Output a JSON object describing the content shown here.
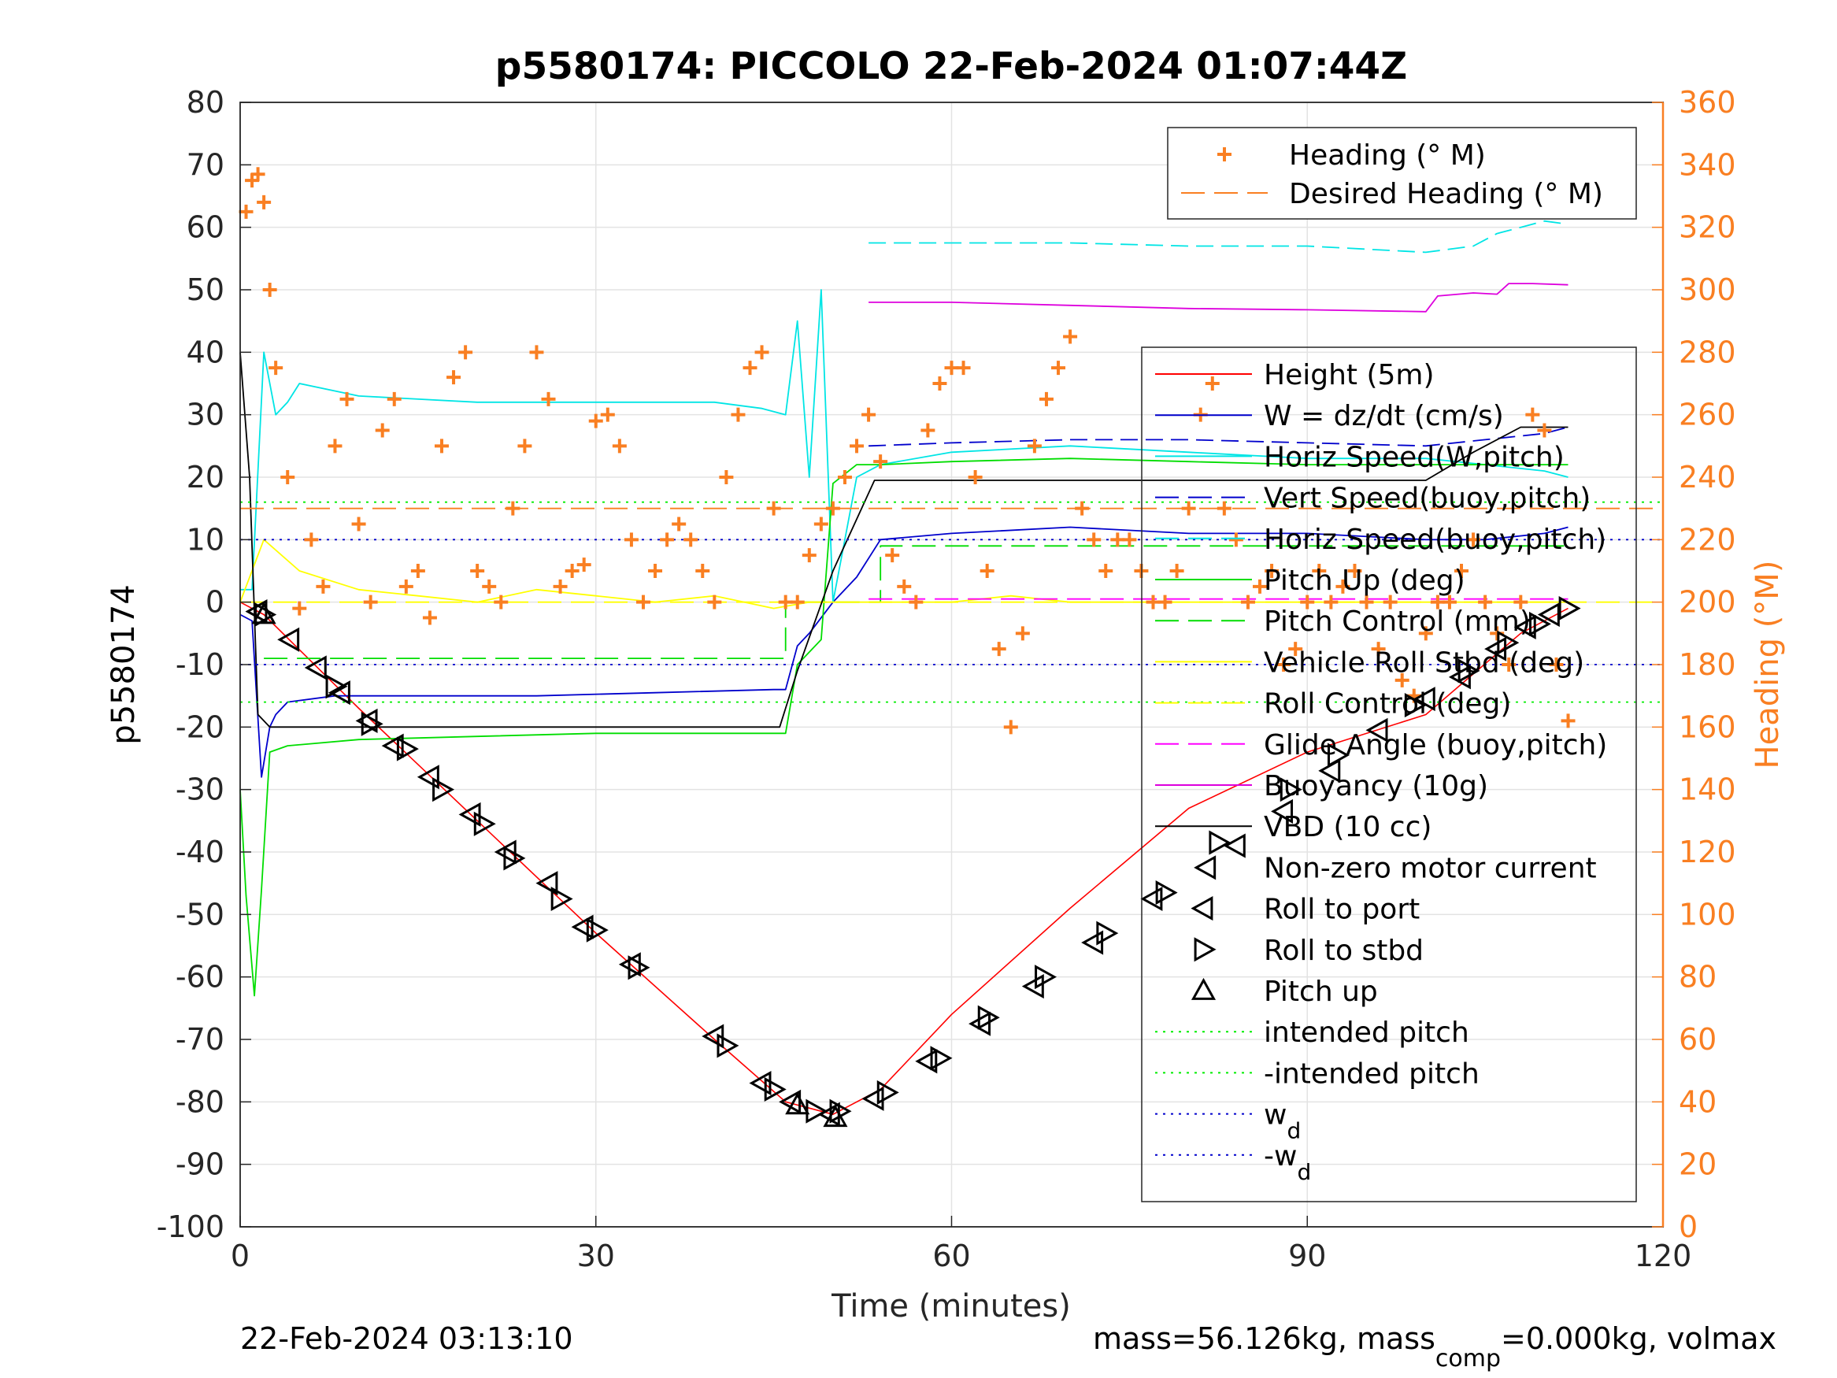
{
  "title": "p5580174: PICCOLO 22-Feb-2024 01:07:44Z",
  "xlabel": "Time (minutes)",
  "ylabel_left": "p5580174",
  "ylabel_right": "Heading (°M)",
  "footer_left": "22-Feb-2024 03:13:10",
  "footer_right_prefix": "mass=56.126kg, mass",
  "footer_right_sub": "comp",
  "footer_right_suffix": "=0.000kg, volmax",
  "colors": {
    "heading": "#f97f22",
    "height": "#ff0000",
    "w": "#0000cc",
    "horiz_speed": "#00e5e5",
    "pitch_up": "#00dd00",
    "roll": "#ffff00",
    "glide": "#ff00ff",
    "buoyancy": "#dd00dd",
    "vbd": "#000000",
    "intended_pitch": "#00ee00",
    "wd": "#0000cc"
  },
  "legend_top": {
    "items": [
      {
        "label": "Heading (° M)",
        "style": "plus",
        "color": "#f97f22"
      },
      {
        "label": "Desired Heading (° M)",
        "style": "dash",
        "color": "#f97f22"
      }
    ]
  },
  "legend_main": {
    "items": [
      {
        "label": "Height (5m)",
        "style": "solid",
        "color": "#ff0000"
      },
      {
        "label": "W = dz/dt (cm/s)",
        "style": "solid",
        "color": "#0000cc"
      },
      {
        "label": "Horiz Speed(W,pitch)",
        "style": "solid",
        "color": "#00e5e5"
      },
      {
        "label": "Vert Speed(buoy,pitch)",
        "style": "dash",
        "color": "#0000cc"
      },
      {
        "label": "Horiz Speed(buoy,pitch)",
        "style": "dash",
        "color": "#00e5e5"
      },
      {
        "label": "Pitch Up (deg)",
        "style": "solid",
        "color": "#00dd00"
      },
      {
        "label": "Pitch Control (mm)",
        "style": "dash",
        "color": "#00dd00"
      },
      {
        "label": "Vehicle Roll Stbd (deg)",
        "style": "solid",
        "color": "#ffff00"
      },
      {
        "label": "Roll Control (deg)",
        "style": "dash",
        "color": "#ffff00"
      },
      {
        "label": "Glide Angle (buoy,pitch)",
        "style": "dash",
        "color": "#ff00ff"
      },
      {
        "label": "Buoyancy (10g)",
        "style": "solid",
        "color": "#dd00dd"
      },
      {
        "label": "VBD (10 cc)",
        "style": "solid",
        "color": "#000000"
      },
      {
        "label": "Non-zero motor current",
        "style": "none",
        "color": "#000000"
      },
      {
        "label": "Roll to port",
        "style": "tri-left",
        "color": "#000000"
      },
      {
        "label": "Roll to stbd",
        "style": "tri-right",
        "color": "#000000"
      },
      {
        "label": "Pitch up",
        "style": "tri-up",
        "color": "#000000"
      },
      {
        "label": "intended pitch",
        "style": "dot",
        "color": "#00ee00"
      },
      {
        "label": "-intended pitch",
        "style": "dot",
        "color": "#00ee00"
      },
      {
        "label": "w",
        "sub": "d",
        "style": "dot",
        "color": "#0000cc"
      },
      {
        "label": "-w",
        "sub": "d",
        "style": "dot",
        "color": "#0000cc"
      }
    ]
  },
  "chart_data": {
    "type": "line",
    "title": "p5580174: PICCOLO 22-Feb-2024 01:07:44Z",
    "xlabel": "Time (minutes)",
    "ylabel": "p5580174",
    "y2label": "Heading (°M)",
    "xlim": [
      0,
      120
    ],
    "ylim": [
      -100,
      80
    ],
    "y2lim": [
      0,
      360
    ],
    "xticks": [
      0,
      30,
      60,
      90,
      120
    ],
    "yticks": [
      80,
      70,
      60,
      50,
      40,
      30,
      20,
      10,
      0,
      -10,
      -20,
      -30,
      -40,
      -50,
      -60,
      -70,
      -80,
      -90,
      -100
    ],
    "y2ticks": [
      360,
      340,
      320,
      300,
      280,
      260,
      240,
      220,
      200,
      180,
      160,
      140,
      120,
      100,
      80,
      60,
      40,
      20,
      0
    ],
    "grid": true,
    "legend_placement": [
      "top-right",
      "right"
    ],
    "series": [
      {
        "name": "Height (5m)",
        "axis": "left",
        "x": [
          0,
          2,
          10,
          20,
          30,
          40,
          46,
          50,
          54,
          60,
          70,
          80,
          90,
          100,
          108,
          112
        ],
        "y": [
          0,
          -2,
          -17,
          -35,
          -53,
          -70,
          -80,
          -82,
          -78,
          -66,
          -49,
          -33,
          -24,
          -18,
          -5,
          -1
        ]
      },
      {
        "name": "W = dz/dt (cm/s)",
        "axis": "left",
        "x": [
          0,
          1,
          1.8,
          2.5,
          3,
          4,
          8,
          15,
          25,
          35,
          45,
          46,
          47,
          48,
          50,
          52,
          54,
          60,
          70,
          80,
          90,
          100,
          105,
          110,
          112
        ],
        "y": [
          -2,
          -3,
          -28,
          -20,
          -18,
          -16,
          -15,
          -15,
          -15,
          -14.5,
          -14,
          -14,
          -7,
          -5,
          0,
          4,
          10,
          11,
          12,
          11,
          11,
          10,
          10,
          11,
          12
        ]
      },
      {
        "name": "Horiz Speed(W,pitch)",
        "axis": "left",
        "x": [
          0,
          1,
          2,
          3,
          4,
          5,
          10,
          20,
          30,
          40,
          44,
          46,
          47,
          48,
          49,
          50,
          52,
          54,
          60,
          70,
          80,
          90,
          100,
          105,
          110,
          112
        ],
        "y": [
          2,
          2,
          40,
          30,
          32,
          35,
          33,
          32,
          32,
          32,
          31,
          30,
          45,
          20,
          50,
          0,
          20,
          22,
          24,
          25,
          24,
          23,
          23,
          22,
          21,
          20
        ]
      },
      {
        "name": "Vert Speed(buoy,pitch)",
        "axis": "left",
        "x": [
          53,
          60,
          70,
          80,
          90,
          100,
          105,
          110,
          112
        ],
        "y": [
          25,
          25.5,
          26,
          26,
          25.5,
          25,
          26,
          27,
          28
        ]
      },
      {
        "name": "Horiz Speed(buoy,pitch)",
        "axis": "left",
        "x": [
          53,
          60,
          70,
          80,
          90,
          100,
          104,
          106,
          108,
          110,
          112
        ],
        "y": [
          57.5,
          57.5,
          57.5,
          57,
          57,
          56,
          57,
          59,
          60,
          61,
          60.5
        ]
      },
      {
        "name": "Pitch Up (deg)",
        "axis": "left",
        "x": [
          0,
          0.5,
          1.2,
          1.8,
          2.5,
          4,
          10,
          20,
          30,
          40,
          46,
          47,
          48,
          49,
          50,
          52,
          54,
          60,
          70,
          80,
          90,
          100,
          110,
          112
        ],
        "y": [
          -30,
          -47,
          -63,
          -46,
          -24,
          -23,
          -22,
          -21.5,
          -21,
          -21,
          -21,
          -10,
          -8,
          -6,
          19,
          22,
          22,
          22.5,
          23,
          22.5,
          22,
          22,
          22,
          22
        ]
      },
      {
        "name": "Pitch Control (mm)",
        "axis": "left",
        "x": [
          2,
          46,
          46,
          54,
          54,
          112
        ],
        "y": [
          -9,
          -9,
          0,
          0,
          9,
          9
        ]
      },
      {
        "name": "Vehicle Roll Stbd (deg)",
        "axis": "left",
        "x": [
          0,
          2,
          5,
          10,
          15,
          20,
          25,
          30,
          35,
          40,
          45,
          48,
          50,
          55,
          60,
          65,
          70,
          75,
          80,
          85,
          90,
          95,
          100,
          105,
          110,
          112
        ],
        "y": [
          0,
          10,
          5,
          2,
          1,
          0,
          2,
          1,
          0,
          1,
          -1,
          0,
          0,
          0,
          0,
          1,
          0,
          0,
          0,
          0,
          0,
          0,
          0,
          0,
          0,
          0
        ]
      },
      {
        "name": "Roll Control (deg)",
        "axis": "left",
        "x": [
          0,
          120
        ],
        "y": [
          0,
          0
        ]
      },
      {
        "name": "Glide Angle (buoy,pitch)",
        "axis": "left",
        "x": [
          53,
          112
        ],
        "y": [
          0.5,
          0.5
        ]
      },
      {
        "name": "Buoyancy (10g)",
        "axis": "left",
        "x": [
          53,
          60,
          70,
          80,
          90,
          100,
          101,
          104,
          106,
          107,
          109,
          112
        ],
        "y": [
          48,
          48,
          47.5,
          47,
          46.8,
          46.5,
          49,
          49.5,
          49.3,
          51,
          51,
          50.8
        ]
      },
      {
        "name": "VBD (10 cc)",
        "axis": "left",
        "x": [
          0,
          0.8,
          1.5,
          2.5,
          10,
          20,
          30,
          40,
          45.5,
          47,
          50,
          53.5,
          60,
          70,
          80,
          90,
          100,
          104,
          108,
          112
        ],
        "y": [
          40,
          20,
          -18,
          -20,
          -20,
          -20,
          -20,
          -20,
          -20,
          -11,
          5,
          19.5,
          19.5,
          19.5,
          19.5,
          19.5,
          19.5,
          24,
          28,
          28
        ]
      },
      {
        "name": "intended pitch",
        "axis": "left",
        "x": [
          0,
          120
        ],
        "y": [
          16,
          16
        ]
      },
      {
        "name": "-intended pitch",
        "axis": "left",
        "x": [
          0,
          120
        ],
        "y": [
          -16,
          -16
        ]
      },
      {
        "name": "w_d",
        "axis": "left",
        "x": [
          0,
          120
        ],
        "y": [
          10,
          10
        ]
      },
      {
        "name": "-w_d",
        "axis": "left",
        "x": [
          0,
          120
        ],
        "y": [
          -10,
          -10
        ]
      },
      {
        "name": "Desired Heading (° M)",
        "axis": "right",
        "x": [
          0,
          120
        ],
        "y": [
          230,
          230
        ]
      },
      {
        "name": "Heading (° M)",
        "axis": "right",
        "type": "scatter",
        "x": [
          0.5,
          1,
          1.5,
          2,
          2.5,
          3,
          4,
          5,
          6,
          7,
          8,
          9,
          10,
          11,
          12,
          13,
          14,
          15,
          16,
          17,
          18,
          19,
          20,
          21,
          22,
          23,
          24,
          25,
          26,
          27,
          28,
          29,
          30,
          31,
          32,
          33,
          34,
          35,
          36,
          37,
          38,
          39,
          40,
          41,
          42,
          43,
          44,
          45,
          46,
          47,
          48,
          49,
          50,
          51,
          52,
          53,
          54,
          55,
          56,
          57,
          58,
          59,
          60,
          61,
          62,
          63,
          64,
          65,
          66,
          67,
          68,
          69,
          70,
          71,
          72,
          73,
          74,
          75,
          76,
          77,
          78,
          79,
          80,
          81,
          82,
          83,
          84,
          85,
          86,
          87,
          88,
          89,
          90,
          91,
          92,
          93,
          94,
          95,
          96,
          97,
          98,
          99,
          100,
          101,
          102,
          103,
          104,
          105,
          106,
          107,
          108,
          109,
          110,
          111,
          112
        ],
        "y": [
          325,
          335,
          337,
          328,
          300,
          275,
          240,
          198,
          220,
          205,
          250,
          265,
          225,
          200,
          255,
          265,
          205,
          210,
          195,
          250,
          272,
          280,
          210,
          205,
          200,
          230,
          250,
          280,
          265,
          205,
          210,
          212,
          258,
          260,
          250,
          220,
          200,
          210,
          220,
          225,
          220,
          210,
          200,
          240,
          260,
          275,
          280,
          230,
          200,
          200,
          215,
          225,
          230,
          240,
          250,
          260,
          245,
          215,
          205,
          200,
          255,
          270,
          275,
          275,
          240,
          210,
          185,
          160,
          190,
          250,
          265,
          275,
          285,
          230,
          220,
          210,
          220,
          220,
          210,
          200,
          200,
          210,
          230,
          260,
          270,
          230,
          220,
          200,
          205,
          210,
          180,
          185,
          200,
          210,
          200,
          205,
          210,
          200,
          185,
          200,
          175,
          170,
          190,
          200,
          200,
          210,
          220,
          200,
          190,
          180,
          200,
          260,
          255,
          180,
          162
        ]
      },
      {
        "name": "Roll to port",
        "axis": "left",
        "type": "markers",
        "x": [
          1.5,
          4.2,
          6.5,
          8.5,
          10.8,
          13,
          16,
          19.5,
          22.5,
          26,
          29,
          33,
          40,
          44,
          46.5,
          49.8,
          53.5,
          58,
          62.5,
          67,
          72,
          77,
          81.5,
          84,
          88,
          92,
          96,
          100,
          103,
          106,
          108.5,
          110.5
        ],
        "y": [
          -1.5,
          -6,
          -10.5,
          -14.5,
          -19,
          -23,
          -28,
          -34,
          -40,
          -45,
          -52,
          -58,
          -69.5,
          -77,
          -80,
          -82,
          -79.5,
          -73.5,
          -67.5,
          -61.5,
          -54.5,
          -47.5,
          -42.5,
          -39,
          -33.5,
          -27,
          -20.5,
          -15.5,
          -12,
          -7.5,
          -4,
          -2
        ]
      },
      {
        "name": "Roll to stbd",
        "axis": "left",
        "type": "markers",
        "x": [
          2,
          8,
          11,
          14,
          17,
          20.5,
          23,
          27,
          30,
          33.5,
          41,
          45,
          48.5,
          50.5,
          54.5,
          59,
          63,
          67.8,
          73,
          78,
          82.5,
          88.5,
          92.5,
          99,
          103.5,
          106.8,
          109.5,
          112
        ],
        "y": [
          -2,
          -13.5,
          -19.5,
          -23.5,
          -30,
          -35.5,
          -41,
          -47.5,
          -52.5,
          -58.5,
          -71,
          -78,
          -81.5,
          -81.5,
          -78.5,
          -73,
          -66.5,
          -60,
          -53,
          -46.5,
          -38.5,
          -30,
          -24.5,
          -16.5,
          -11,
          -6.5,
          -3.5,
          -1
        ]
      },
      {
        "name": "Pitch up",
        "axis": "left",
        "type": "markers",
        "x": [
          2,
          47,
          50.2
        ],
        "y": [
          -2,
          -80.5,
          -82.5
        ]
      }
    ]
  }
}
